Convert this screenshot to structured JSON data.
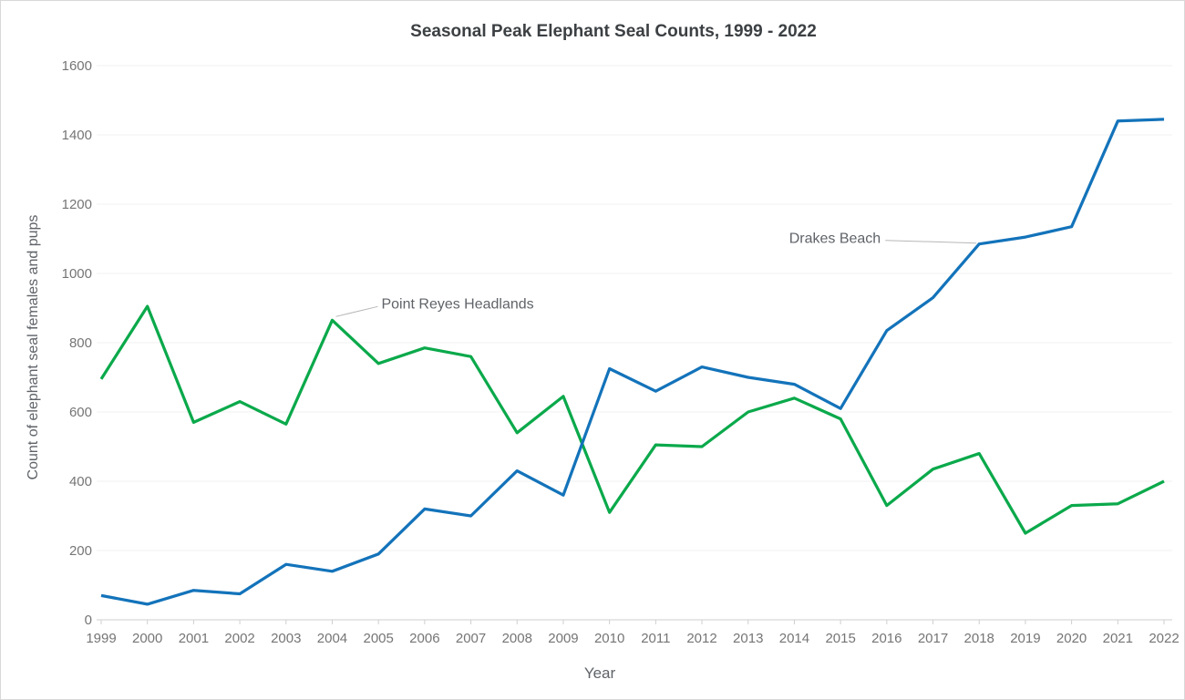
{
  "colors": {
    "drakes_beach_line": "#1373BA",
    "point_reyes_line": "#0BA94B",
    "gridline": "#f1f1f1",
    "axis_line": "#cfcfcf",
    "tick_label_text": "#757575",
    "title_text": "#3c4043",
    "annotation_text": "#5f6368",
    "annotation_connector": "#b7b7b7",
    "background": "#ffffff"
  },
  "chart_data": {
    "type": "line",
    "title": "Seasonal Peak Elephant Seal Counts, 1999 - 2022",
    "xlabel": "Year",
    "ylabel": "Count of elephant seal females and pups",
    "x": [
      1999,
      2000,
      2001,
      2002,
      2003,
      2004,
      2005,
      2006,
      2007,
      2008,
      2009,
      2010,
      2011,
      2012,
      2013,
      2014,
      2015,
      2016,
      2017,
      2018,
      2019,
      2020,
      2021,
      2022
    ],
    "series": [
      {
        "name": "Drakes Beach",
        "color": "#1373BA",
        "values": [
          70,
          45,
          85,
          75,
          160,
          140,
          190,
          320,
          300,
          430,
          360,
          725,
          660,
          730,
          700,
          680,
          610,
          835,
          930,
          1085,
          1105,
          1135,
          1440,
          1445
        ]
      },
      {
        "name": "Point Reyes Headlands",
        "color": "#0BA94B",
        "values": [
          695,
          905,
          570,
          630,
          565,
          865,
          740,
          785,
          760,
          540,
          645,
          310,
          505,
          500,
          600,
          640,
          580,
          330,
          435,
          480,
          250,
          330,
          335,
          400
        ]
      }
    ],
    "ylim": [
      0,
      1600
    ],
    "ytick_step": 200,
    "grid": "horizontal",
    "legend": "none",
    "annotations": [
      {
        "text": "Point Reyes Headlands",
        "series": "Point Reyes Headlands",
        "year": 2004,
        "side": "upper-right"
      },
      {
        "text": "Drakes Beach",
        "series": "Drakes Beach",
        "year": 2018,
        "side": "left"
      }
    ]
  }
}
